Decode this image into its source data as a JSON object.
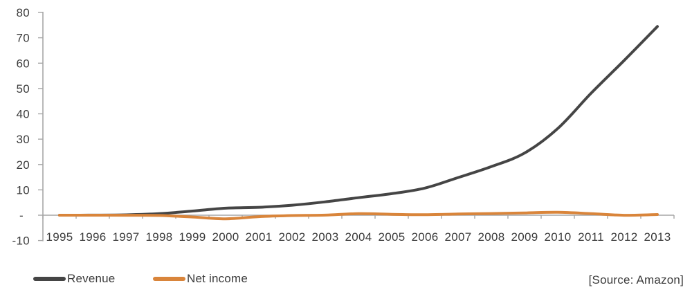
{
  "chart_data": {
    "type": "line",
    "title": "",
    "xlabel": "",
    "ylabel": "",
    "categories": [
      "1995",
      "1996",
      "1997",
      "1998",
      "1999",
      "2000",
      "2001",
      "2002",
      "2003",
      "2004",
      "2005",
      "2006",
      "2007",
      "2008",
      "2009",
      "2010",
      "2011",
      "2012",
      "2013"
    ],
    "series": [
      {
        "name": "Revenue",
        "color": "#454545",
        "values": [
          0.0,
          0.02,
          0.15,
          0.61,
          1.64,
          2.76,
          3.12,
          3.93,
          5.26,
          6.92,
          8.49,
          10.71,
          14.84,
          19.17,
          24.51,
          34.2,
          48.08,
          61.09,
          74.45
        ]
      },
      {
        "name": "Net income",
        "color": "#d9853b",
        "values": [
          0.0,
          -0.01,
          -0.03,
          -0.12,
          -0.72,
          -1.41,
          -0.57,
          -0.15,
          0.04,
          0.59,
          0.36,
          0.19,
          0.48,
          0.65,
          0.9,
          1.15,
          0.63,
          -0.04,
          0.27
        ]
      }
    ],
    "ylim": [
      -10,
      80
    ],
    "y_ticks": [
      {
        "v": 80,
        "label": "80"
      },
      {
        "v": 70,
        "label": "70"
      },
      {
        "v": 60,
        "label": "60"
      },
      {
        "v": 50,
        "label": "50"
      },
      {
        "v": 40,
        "label": "40"
      },
      {
        "v": 30,
        "label": "30"
      },
      {
        "v": 20,
        "label": "20"
      },
      {
        "v": 10,
        "label": "10"
      },
      {
        "v": 0,
        "label": "-"
      },
      {
        "v": -10,
        "label": "-10"
      }
    ],
    "grid": false,
    "line_style": "smooth",
    "legend_position": "bottom-left",
    "axis_color": "#a6a6a6",
    "text_color": "#3b3b3b"
  },
  "legend": {
    "items": [
      {
        "label": "Revenue",
        "color": "#454545"
      },
      {
        "label": "Net income",
        "color": "#d9853b"
      }
    ]
  },
  "source_note": "[Source: Amazon]"
}
